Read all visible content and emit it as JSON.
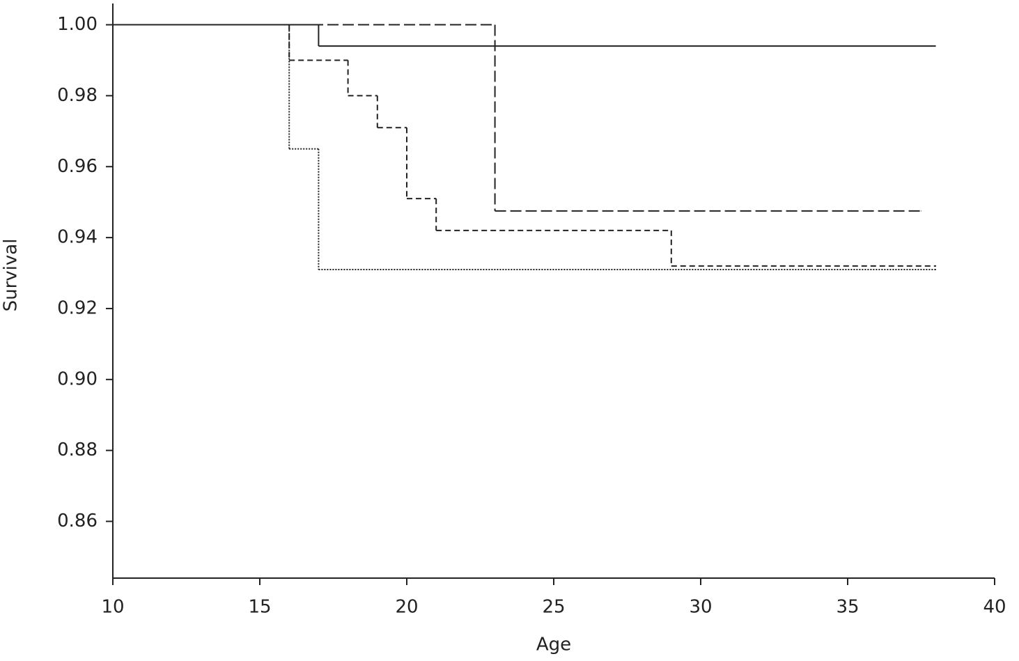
{
  "chart_data": {
    "type": "step",
    "x_label": "Age",
    "y_label": "Survival",
    "xlim": [
      10,
      40
    ],
    "xticks": [
      10,
      15,
      20,
      25,
      30,
      35,
      40
    ],
    "ylim": [
      0.844,
      1.006
    ],
    "yticks": [
      {
        "value": 1,
        "label": "1.00"
      },
      0.98,
      0.96,
      0.94,
      0.92,
      {
        "value": 0.9,
        "label": "0.90"
      },
      0.88,
      0.86
    ],
    "grid": false,
    "series": [
      {
        "color": "#222222",
        "dash": "solid",
        "x": [
          10,
          17,
          38
        ],
        "values": [
          1,
          0.994,
          0.994
        ]
      },
      {
        "color": "#222222",
        "dash": "long-dash",
        "x": [
          10,
          23,
          37.5
        ],
        "values": [
          1,
          0.9475,
          0.9475
        ]
      },
      {
        "color": "#222222",
        "dash": "dash",
        "x": [
          10,
          16,
          18,
          19,
          20,
          21,
          29,
          38
        ],
        "values": [
          1,
          0.99,
          0.98,
          0.971,
          0.951,
          0.942,
          0.932,
          0.932
        ]
      },
      {
        "color": "#222222",
        "dash": "dot",
        "x": [
          10,
          16,
          17,
          38
        ],
        "values": [
          1,
          0.965,
          0.931,
          0.931
        ]
      }
    ]
  }
}
